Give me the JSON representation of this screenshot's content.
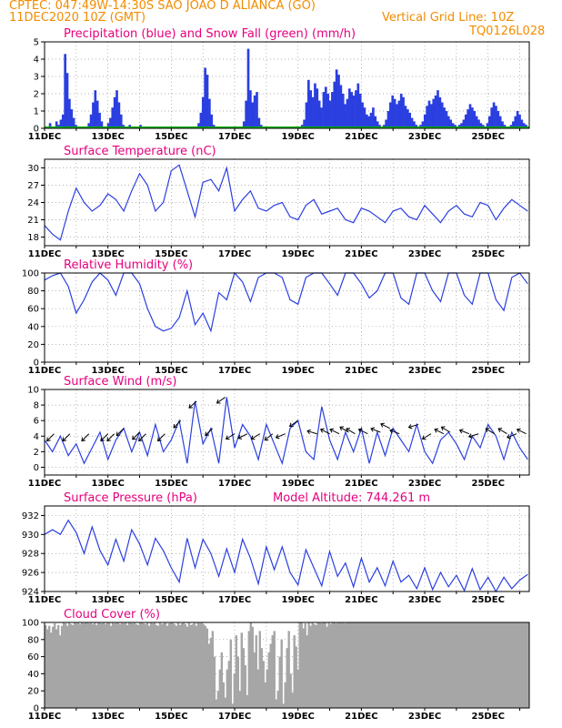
{
  "header": {
    "line1": "CPTEC:   047:49W-14:30S   SAO JOAO D ALIANCA (GO)",
    "line2_left": "11DEC2020 10Z (GMT)",
    "line2_right": "Vertical Grid Line: 10Z",
    "line3_right": "TQ0126L028"
  },
  "colors": {
    "title": "#e6007e",
    "header": "#f28c00",
    "line": "#2b3fe0",
    "bar": "#2b3fe0",
    "snow": "#00b000",
    "cloud": "#a6a6a6",
    "grid": "#999999"
  },
  "chart_data": [
    {
      "id": "precip",
      "type": "bar",
      "title": "Precipitation (blue) and Snow Fall (green) (mm/h)",
      "ylim": [
        0,
        5
      ],
      "yticks": [
        0,
        1,
        2,
        3,
        4,
        5
      ],
      "xticks": [
        "11DEC",
        "13DEC",
        "15DEC",
        "17DEC",
        "19DEC",
        "21DEC",
        "23DEC",
        "25DEC"
      ],
      "series": [
        {
          "values": [
            0,
            0,
            0.3,
            0,
            0,
            0.4,
            0.2,
            0.5,
            0.8,
            4.3,
            3.2,
            1.7,
            1.1,
            0.6,
            0.2,
            0.1,
            0,
            0,
            0.1,
            0,
            0.3,
            0.8,
            1.5,
            2.2,
            1.6,
            0.9,
            0.4,
            0.1,
            0,
            0.3,
            0.6,
            1.2,
            1.8,
            2.2,
            1.5,
            0.8,
            0.2,
            0,
            0.1,
            0.2,
            0.1,
            0,
            0,
            0.1,
            0.2,
            0,
            0,
            0,
            0,
            0.1,
            0,
            0,
            0,
            0,
            0.1,
            0,
            0,
            0.1,
            0,
            0,
            0,
            0.1,
            0,
            0,
            0,
            0.1,
            0,
            0,
            0,
            0.1,
            0,
            0.3,
            0.9,
            1.8,
            3.5,
            3.1,
            1.7,
            0.8,
            0.2,
            0,
            0,
            0,
            0,
            0.1,
            0,
            0,
            0,
            0,
            0,
            0,
            0,
            0.1,
            0.4,
            1.6,
            4.6,
            2.2,
            1.5,
            1.9,
            2.1,
            0.6,
            0.2,
            0,
            0,
            0,
            0,
            0,
            0,
            0,
            0,
            0,
            0,
            0,
            0,
            0,
            0,
            0.1,
            0,
            0.1,
            0,
            0.2,
            0.5,
            1.5,
            2.8,
            2.2,
            1.8,
            2.6,
            2.3,
            1.6,
            1.2,
            2.1,
            2.4,
            2.0,
            1.6,
            2.1,
            2.7,
            3.4,
            3.1,
            2.5,
            2.0,
            1.4,
            1.7,
            2.3,
            2.1,
            1.9,
            2.2,
            2.6,
            2.0,
            1.5,
            1.2,
            0.8,
            0.7,
            0.9,
            1.2,
            0.7,
            0.4,
            0.2,
            0.1,
            0.2,
            0.5,
            1.0,
            1.5,
            1.9,
            1.7,
            1.4,
            1.6,
            2.0,
            1.8,
            1.3,
            1.1,
            0.9,
            0.6,
            0.4,
            0.2,
            0.1,
            0.2,
            0.4,
            0.8,
            1.3,
            1.6,
            1.4,
            1.7,
            1.9,
            2.2,
            1.8,
            1.5,
            1.2,
            1.0,
            0.7,
            0.5,
            0.3,
            0.2,
            0.1,
            0.2,
            0.3,
            0.5,
            0.8,
            1.1,
            1.4,
            1.2,
            1.0,
            0.7,
            0.5,
            0.3,
            0.2,
            0.1,
            0.3,
            0.7,
            1.2,
            1.5,
            1.3,
            1.0,
            0.7,
            0.4,
            0.2,
            0.1,
            0.1,
            0.2,
            0.4,
            0.7,
            1.0,
            0.8,
            0.5,
            0.3,
            0.2,
            0.1
          ]
        },
        {
          "name": "Snow",
          "values": []
        }
      ]
    },
    {
      "id": "temp",
      "type": "line",
      "title": "Surface Temperature (nC)",
      "ylim": [
        16.5,
        31.5
      ],
      "yticks": [
        18,
        21,
        24,
        27,
        30
      ],
      "xticks": [
        "11DEC",
        "13DEC",
        "15DEC",
        "17DEC",
        "19DEC",
        "21DEC",
        "23DEC",
        "25DEC"
      ],
      "x": [
        0,
        0.25,
        0.5,
        0.75,
        1,
        1.25,
        1.5,
        1.75,
        2,
        2.25,
        2.5,
        2.75,
        3,
        3.25,
        3.5,
        3.75,
        4,
        4.25,
        4.5,
        4.75,
        5,
        5.25,
        5.5,
        5.75,
        6,
        6.25,
        6.5,
        6.75,
        7,
        7.25,
        7.5,
        7.75,
        8,
        8.25,
        8.5,
        8.75,
        9,
        9.25,
        9.5,
        9.75,
        10,
        10.25,
        10.5,
        10.75,
        11,
        11.25,
        11.5,
        11.75,
        12,
        12.25,
        12.5,
        12.75,
        13,
        13.25,
        13.5,
        13.75,
        14,
        14.25,
        14.5,
        14.75,
        15,
        15.25
      ],
      "values": [
        20.0,
        18.5,
        17.5,
        22.5,
        26.5,
        24.0,
        22.5,
        23.5,
        25.5,
        24.5,
        22.5,
        26.0,
        29.0,
        27.0,
        22.5,
        24.0,
        29.5,
        30.5,
        26.0,
        21.5,
        27.5,
        28.0,
        26.0,
        30.0,
        22.5,
        24.5,
        26.0,
        23.0,
        22.5,
        23.5,
        24.0,
        21.5,
        21.0,
        23.5,
        24.5,
        22.0,
        22.5,
        23.0,
        21.0,
        20.5,
        23.0,
        22.5,
        21.5,
        20.5,
        22.5,
        23.0,
        21.5,
        21.0,
        23.5,
        22.0,
        20.5,
        22.5,
        23.5,
        22.0,
        21.5,
        24.0,
        23.5,
        21.0,
        23.0,
        24.5,
        23.5,
        22.5
      ]
    },
    {
      "id": "rh",
      "type": "line",
      "title": "Relative Humidity (%)",
      "ylim": [
        0,
        100
      ],
      "yticks": [
        0,
        20,
        40,
        60,
        80,
        100
      ],
      "xticks": [
        "11DEC",
        "13DEC",
        "15DEC",
        "17DEC",
        "19DEC",
        "21DEC",
        "23DEC",
        "25DEC"
      ],
      "x": [
        0,
        0.25,
        0.5,
        0.75,
        1,
        1.25,
        1.5,
        1.75,
        2,
        2.25,
        2.5,
        2.75,
        3,
        3.25,
        3.5,
        3.75,
        4,
        4.25,
        4.5,
        4.75,
        5,
        5.25,
        5.5,
        5.75,
        6,
        6.25,
        6.5,
        6.75,
        7,
        7.25,
        7.5,
        7.75,
        8,
        8.25,
        8.5,
        8.75,
        9,
        9.25,
        9.5,
        9.75,
        10,
        10.25,
        10.5,
        10.75,
        11,
        11.25,
        11.5,
        11.75,
        12,
        12.25,
        12.5,
        12.75,
        13,
        13.25,
        13.5,
        13.75,
        14,
        14.25,
        14.5,
        14.75,
        15,
        15.25
      ],
      "values": [
        92,
        97,
        100,
        85,
        55,
        70,
        90,
        100,
        92,
        75,
        100,
        100,
        88,
        60,
        40,
        35,
        38,
        50,
        80,
        42,
        55,
        35,
        78,
        70,
        100,
        90,
        68,
        95,
        100,
        100,
        95,
        70,
        65,
        95,
        100,
        100,
        88,
        75,
        100,
        100,
        88,
        72,
        80,
        100,
        100,
        72,
        65,
        100,
        100,
        80,
        68,
        100,
        100,
        75,
        65,
        100,
        100,
        70,
        58,
        95,
        100,
        88
      ]
    },
    {
      "id": "wind",
      "type": "line",
      "title": "Surface Wind (m/s)",
      "ylim": [
        -1,
        10
      ],
      "yticks": [
        0,
        2,
        4,
        6,
        8,
        10
      ],
      "xticks": [
        "11DEC",
        "13DEC",
        "15DEC",
        "17DEC",
        "19DEC",
        "21DEC",
        "23DEC",
        "25DEC"
      ],
      "x": [
        0,
        0.25,
        0.5,
        0.75,
        1,
        1.25,
        1.5,
        1.75,
        2,
        2.25,
        2.5,
        2.75,
        3,
        3.25,
        3.5,
        3.75,
        4,
        4.25,
        4.5,
        4.75,
        5,
        5.25,
        5.5,
        5.75,
        6,
        6.25,
        6.5,
        6.75,
        7,
        7.25,
        7.5,
        7.75,
        8,
        8.25,
        8.5,
        8.75,
        9,
        9.25,
        9.5,
        9.75,
        10,
        10.25,
        10.5,
        10.75,
        11,
        11.25,
        11.5,
        11.75,
        12,
        12.25,
        12.5,
        12.75,
        13,
        13.25,
        13.5,
        13.75,
        14,
        14.25,
        14.5,
        14.75,
        15,
        15.25
      ],
      "values": [
        3.5,
        2.0,
        4.0,
        1.5,
        3.0,
        0.5,
        2.5,
        4.5,
        1.0,
        3.5,
        5.0,
        2.0,
        4.5,
        1.5,
        5.5,
        2.0,
        3.5,
        6.0,
        0.5,
        8.5,
        3.0,
        5.0,
        0.5,
        9.0,
        2.5,
        5.5,
        4.0,
        1.0,
        5.5,
        3.0,
        0.5,
        5.0,
        6.0,
        2.0,
        1.0,
        7.8,
        3.5,
        1.0,
        4.5,
        2.0,
        5.0,
        0.5,
        4.5,
        1.5,
        5.0,
        3.5,
        2.0,
        5.5,
        2.0,
        0.5,
        3.5,
        4.5,
        3.0,
        1.0,
        4.0,
        2.5,
        5.5,
        4.0,
        1.0,
        4.5,
        2.5,
        1.0
      ],
      "arrows": [
        [
          0.3,
          -1
        ],
        [
          0.8,
          -1
        ],
        [
          1.4,
          -1
        ],
        [
          2.0,
          -1
        ],
        [
          2.2,
          -1
        ],
        [
          2.5,
          -1
        ],
        [
          3.0,
          -1
        ],
        [
          3.2,
          -1
        ],
        [
          3.8,
          -1
        ],
        [
          4.3,
          -1
        ],
        [
          4.8,
          -0.9
        ],
        [
          5.3,
          -1
        ],
        [
          5.7,
          -0.7
        ],
        [
          6.0,
          -0.6
        ],
        [
          6.4,
          -0.5
        ],
        [
          6.8,
          -0.6
        ],
        [
          7.2,
          -0.8
        ],
        [
          7.6,
          -0.4
        ],
        [
          8.0,
          -0.7
        ],
        [
          8.6,
          0.3
        ],
        [
          9.0,
          0.5
        ],
        [
          9.3,
          0.5
        ],
        [
          9.6,
          0.6
        ],
        [
          9.8,
          0.6
        ],
        [
          10.2,
          0.5
        ],
        [
          10.6,
          0.4
        ],
        [
          10.9,
          0.5
        ],
        [
          11.2,
          0.4
        ],
        [
          11.8,
          -0.3
        ],
        [
          12.2,
          -0.6
        ],
        [
          12.6,
          0.5
        ],
        [
          12.8,
          0.6
        ],
        [
          13.4,
          0.4
        ],
        [
          13.7,
          -0.3
        ],
        [
          14.2,
          0.6
        ],
        [
          14.6,
          0.6
        ],
        [
          14.9,
          -0.4
        ],
        [
          15.2,
          0.5
        ]
      ]
    },
    {
      "id": "pres",
      "type": "line",
      "title": "Surface Pressure (hPa)",
      "annotation": "Model Altitude: 744.261  m",
      "ylim": [
        924,
        933
      ],
      "yticks": [
        924,
        926,
        928,
        930,
        932
      ],
      "xticks": [
        "11DEC",
        "13DEC",
        "15DEC",
        "17DEC",
        "19DEC",
        "21DEC",
        "23DEC",
        "25DEC"
      ],
      "x": [
        0,
        0.25,
        0.5,
        0.75,
        1,
        1.25,
        1.5,
        1.75,
        2,
        2.25,
        2.5,
        2.75,
        3,
        3.25,
        3.5,
        3.75,
        4,
        4.25,
        4.5,
        4.75,
        5,
        5.25,
        5.5,
        5.75,
        6,
        6.25,
        6.5,
        6.75,
        7,
        7.25,
        7.5,
        7.75,
        8,
        8.25,
        8.5,
        8.75,
        9,
        9.25,
        9.5,
        9.75,
        10,
        10.25,
        10.5,
        10.75,
        11,
        11.25,
        11.5,
        11.75,
        12,
        12.25,
        12.5,
        12.75,
        13,
        13.25,
        13.5,
        13.75,
        14,
        14.25,
        14.5,
        14.75,
        15,
        15.25
      ],
      "values": [
        930.0,
        930.5,
        930.0,
        931.5,
        930.2,
        928.0,
        930.8,
        928.3,
        926.8,
        929.5,
        927.2,
        930.5,
        929.0,
        926.8,
        929.6,
        928.3,
        926.5,
        925.0,
        929.6,
        926.5,
        929.5,
        928.0,
        925.6,
        928.5,
        926.0,
        929.5,
        927.5,
        924.8,
        928.7,
        926.3,
        928.7,
        926.0,
        924.7,
        928.4,
        926.5,
        924.6,
        928.2,
        925.6,
        927.0,
        924.5,
        927.5,
        925.0,
        926.5,
        924.6,
        927.2,
        925.0,
        925.7,
        924.3,
        926.5,
        924.2,
        926.0,
        924.5,
        925.7,
        924.1,
        926.4,
        924.2,
        925.5,
        924.0,
        925.5,
        924.3,
        925.2,
        925.8
      ]
    },
    {
      "id": "cloud",
      "type": "area",
      "title": "Cloud Cover (%)",
      "ylim": [
        0,
        100
      ],
      "yticks": [
        0,
        20,
        40,
        60,
        80,
        100
      ],
      "xticks": [
        "11DEC",
        "13DEC",
        "15DEC",
        "17DEC",
        "19DEC",
        "21DEC",
        "23DEC",
        "25DEC"
      ],
      "values": [
        97,
        92,
        96,
        88,
        95,
        99,
        92,
        97,
        85,
        96,
        100,
        99,
        96,
        100,
        98,
        97,
        100,
        99,
        100,
        98,
        100,
        99,
        100,
        100,
        99,
        100,
        98,
        100,
        97,
        100,
        100,
        99,
        100,
        98,
        100,
        100,
        96,
        100,
        99,
        100,
        100,
        98,
        100,
        99,
        100,
        97,
        100,
        100,
        99,
        100,
        98,
        97,
        100,
        100,
        99,
        98,
        100,
        96,
        100,
        99,
        100,
        97,
        96,
        100,
        98,
        99,
        100,
        96,
        99,
        100,
        100,
        98,
        96,
        100,
        97,
        99,
        100,
        98,
        95,
        100,
        97,
        98,
        100,
        96,
        100,
        99,
        100,
        98,
        96,
        93,
        75,
        82,
        90,
        60,
        10,
        20,
        45,
        65,
        30,
        12,
        45,
        55,
        80,
        5,
        40,
        85,
        60,
        20,
        88,
        70,
        50,
        15,
        90,
        100,
        95,
        65,
        85,
        45,
        90,
        70,
        55,
        30,
        45,
        65,
        75,
        85,
        90,
        10,
        20,
        60,
        80,
        5,
        30,
        70,
        90,
        40,
        18,
        85,
        72,
        45,
        100,
        100,
        93,
        99,
        85,
        100,
        96,
        100,
        98,
        97,
        100,
        100,
        99,
        100,
        100,
        95,
        100,
        98,
        100,
        100,
        99,
        100,
        100,
        100,
        100,
        99,
        100,
        100,
        100,
        100,
        100,
        100,
        100,
        100,
        100,
        100,
        100,
        100,
        100,
        100,
        100,
        100,
        100,
        100,
        100,
        100,
        100,
        100,
        100,
        100,
        100,
        100,
        100,
        100,
        100,
        100,
        100,
        100,
        100,
        100,
        100,
        100,
        100,
        100,
        100,
        100,
        100,
        100,
        100,
        100,
        100,
        100,
        100,
        100,
        100,
        100,
        100,
        100,
        100,
        100,
        100,
        100,
        100,
        100,
        100,
        100,
        100,
        100,
        100,
        100,
        100,
        100,
        100,
        100,
        100,
        100,
        100,
        100,
        100,
        100,
        100,
        100,
        100,
        100,
        100,
        100,
        100,
        100,
        100,
        100,
        100,
        100,
        100,
        100,
        100,
        100,
        100,
        100,
        100,
        100,
        100,
        100,
        100,
        100,
        100,
        100,
        100
      ]
    }
  ]
}
